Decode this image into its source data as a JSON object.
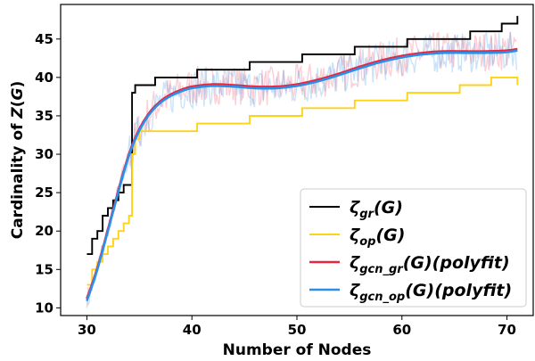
{
  "chart_data": {
    "type": "line",
    "xlabel": "Number of Nodes",
    "ylabel_parts": [
      "Cardinality of ",
      "Z",
      "(",
      "G",
      ")"
    ],
    "xlim": [
      27.5,
      72.5
    ],
    "ylim": [
      9,
      49.5
    ],
    "xticks": [
      30,
      40,
      50,
      60,
      70
    ],
    "yticks": [
      10,
      15,
      20,
      25,
      30,
      35,
      40,
      45
    ],
    "legend_position": "lower-right",
    "series": [
      {
        "key": "gr",
        "legend_main": "ζ",
        "legend_sub": "gr",
        "legend_suffix": "(G)",
        "color": "#000000",
        "style": "step",
        "points": [
          [
            30,
            17
          ],
          [
            30.5,
            19
          ],
          [
            31,
            20
          ],
          [
            31.5,
            22
          ],
          [
            32,
            23
          ],
          [
            32.5,
            24
          ],
          [
            33,
            25
          ],
          [
            33.5,
            26
          ],
          [
            34,
            26
          ],
          [
            34.3,
            38
          ],
          [
            34.6,
            39
          ],
          [
            36,
            39
          ],
          [
            36.5,
            40
          ],
          [
            40,
            40
          ],
          [
            40.5,
            41
          ],
          [
            45,
            41
          ],
          [
            45.5,
            42
          ],
          [
            50,
            42
          ],
          [
            50.5,
            43
          ],
          [
            55,
            43
          ],
          [
            55.5,
            44
          ],
          [
            60,
            44
          ],
          [
            60.5,
            45
          ],
          [
            66,
            45
          ],
          [
            66.5,
            46
          ],
          [
            69,
            46
          ],
          [
            69.5,
            47
          ],
          [
            70.5,
            47
          ],
          [
            71,
            48
          ]
        ]
      },
      {
        "key": "op",
        "legend_main": "ζ",
        "legend_sub": "op",
        "legend_suffix": "(G)",
        "color": "#ffd21a",
        "style": "step",
        "points": [
          [
            30,
            13
          ],
          [
            30.5,
            15
          ],
          [
            31,
            16
          ],
          [
            31.5,
            17
          ],
          [
            32,
            18
          ],
          [
            32.5,
            19
          ],
          [
            33,
            20
          ],
          [
            33.5,
            21
          ],
          [
            34,
            22
          ],
          [
            34.3,
            30
          ],
          [
            34.6,
            32
          ],
          [
            35,
            33
          ],
          [
            40,
            33
          ],
          [
            40.5,
            34
          ],
          [
            45,
            34
          ],
          [
            45.5,
            35
          ],
          [
            50,
            35
          ],
          [
            50.5,
            36
          ],
          [
            55,
            36
          ],
          [
            55.5,
            37
          ],
          [
            60,
            37
          ],
          [
            60.5,
            38
          ],
          [
            65,
            38
          ],
          [
            65.5,
            39
          ],
          [
            68,
            39
          ],
          [
            68.5,
            40
          ],
          [
            70.5,
            40
          ],
          [
            71,
            39
          ]
        ]
      },
      {
        "key": "gcn_gr",
        "legend_main": "ζ",
        "legend_sub": "gcn_gr",
        "legend_suffix": "(G)(polyfit)",
        "color": "#e8263e",
        "style": "smooth",
        "points": [
          [
            30,
            11.2
          ],
          [
            31,
            15.2
          ],
          [
            32,
            20.2
          ],
          [
            33,
            25.3
          ],
          [
            34,
            30.0
          ],
          [
            35,
            33.3
          ],
          [
            36,
            35.5
          ],
          [
            37,
            36.9
          ],
          [
            38,
            37.8
          ],
          [
            39,
            38.4
          ],
          [
            40,
            38.8
          ],
          [
            42,
            39.1
          ],
          [
            44,
            39.0
          ],
          [
            46,
            38.8
          ],
          [
            48,
            38.8
          ],
          [
            50,
            39.1
          ],
          [
            52,
            39.7
          ],
          [
            54,
            40.5
          ],
          [
            56,
            41.4
          ],
          [
            58,
            42.2
          ],
          [
            60,
            42.8
          ],
          [
            62,
            43.2
          ],
          [
            64,
            43.4
          ],
          [
            66,
            43.4
          ],
          [
            68,
            43.4
          ],
          [
            70,
            43.5
          ],
          [
            71,
            43.7
          ]
        ]
      },
      {
        "key": "gcn_op",
        "legend_main": "ζ",
        "legend_sub": "gcn_op",
        "legend_suffix": "(G)(polyfit)",
        "color": "#2b8ee8",
        "style": "smooth",
        "points": [
          [
            30,
            10.9
          ],
          [
            31,
            15.0
          ],
          [
            32,
            20.0
          ],
          [
            33,
            25.1
          ],
          [
            34,
            29.8
          ],
          [
            35,
            33.1
          ],
          [
            36,
            35.3
          ],
          [
            37,
            36.7
          ],
          [
            38,
            37.6
          ],
          [
            39,
            38.2
          ],
          [
            40,
            38.6
          ],
          [
            42,
            38.9
          ],
          [
            44,
            38.8
          ],
          [
            46,
            38.6
          ],
          [
            48,
            38.6
          ],
          [
            50,
            38.9
          ],
          [
            52,
            39.5
          ],
          [
            54,
            40.3
          ],
          [
            56,
            41.2
          ],
          [
            58,
            42.0
          ],
          [
            60,
            42.6
          ],
          [
            62,
            43.0
          ],
          [
            64,
            43.2
          ],
          [
            66,
            43.2
          ],
          [
            68,
            43.2
          ],
          [
            70,
            43.3
          ],
          [
            71,
            43.5
          ]
        ]
      }
    ]
  }
}
